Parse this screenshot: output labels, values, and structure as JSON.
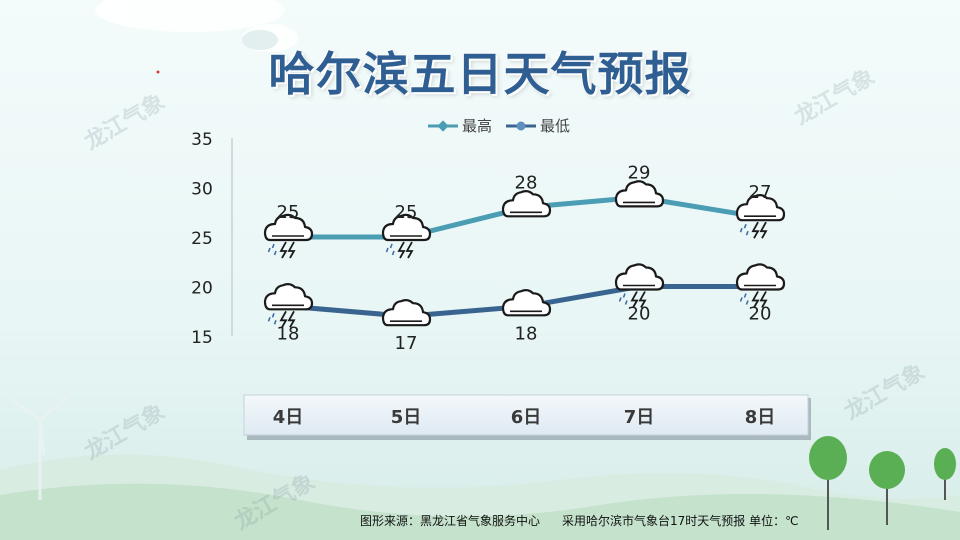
{
  "header": {
    "title": "哈尔滨五日天气预报"
  },
  "footer": {
    "source": "图形来源：黑龙江省气象服务中心",
    "note": "采用哈尔滨市气象台17时天气预报 单位：℃"
  },
  "watermark": "龙江气象",
  "colors": {
    "high_line": "#4a9db2",
    "low_line": "#3a6490",
    "title": "#2f5f92",
    "background_top": "#f2fafa",
    "background_bottom": "#dceff0",
    "hill": "#c7e3cf",
    "tree": "#5aae53"
  },
  "chart_data": {
    "type": "line",
    "categories": [
      "4日",
      "5日",
      "6日",
      "7日",
      "8日"
    ],
    "series": [
      {
        "name": "最高",
        "values": [
          25,
          25,
          28,
          29,
          27
        ],
        "icons": [
          "thunder-rain-icon",
          "thunder-rain-icon",
          "cloudy-icon",
          "cloudy-icon",
          "thunder-rain-icon"
        ]
      },
      {
        "name": "最低",
        "values": [
          18,
          17,
          18,
          20,
          20
        ],
        "icons": [
          "thunder-rain-icon",
          "cloudy-icon",
          "cloudy-icon",
          "thunder-rain-icon",
          "thunder-rain-icon"
        ]
      }
    ],
    "yticks": [
      35,
      30,
      25,
      20,
      15
    ],
    "ylim": [
      15,
      35
    ],
    "legend": "top-center",
    "grid": false
  }
}
